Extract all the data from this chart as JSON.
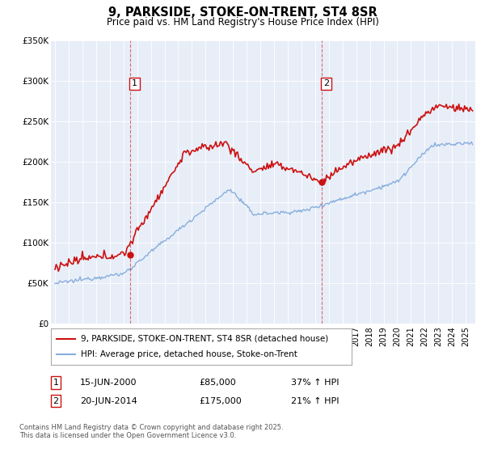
{
  "title": "9, PARKSIDE, STOKE-ON-TRENT, ST4 8SR",
  "subtitle": "Price paid vs. HM Land Registry's House Price Index (HPI)",
  "ylim": [
    0,
    350000
  ],
  "yticks": [
    0,
    50000,
    100000,
    150000,
    200000,
    250000,
    300000,
    350000
  ],
  "ytick_labels": [
    "£0",
    "£50K",
    "£100K",
    "£150K",
    "£200K",
    "£250K",
    "£300K",
    "£350K"
  ],
  "sale1_date_num": 2000.46,
  "sale1_price": 85000,
  "sale1_label": "15-JUN-2000",
  "sale1_hpi_pct": "37%",
  "sale2_date_num": 2014.46,
  "sale2_price": 175000,
  "sale2_label": "20-JUN-2014",
  "sale2_hpi_pct": "21%",
  "legend1": "9, PARKSIDE, STOKE-ON-TRENT, ST4 8SR (detached house)",
  "legend2": "HPI: Average price, detached house, Stoke-on-Trent",
  "footer": "Contains HM Land Registry data © Crown copyright and database right 2025.\nThis data is licensed under the Open Government Licence v3.0.",
  "red_color": "#cc1111",
  "blue_color": "#88aedd",
  "bg_color": "#ffffff",
  "chart_bg": "#e8eef8",
  "grid_color": "#ffffff"
}
